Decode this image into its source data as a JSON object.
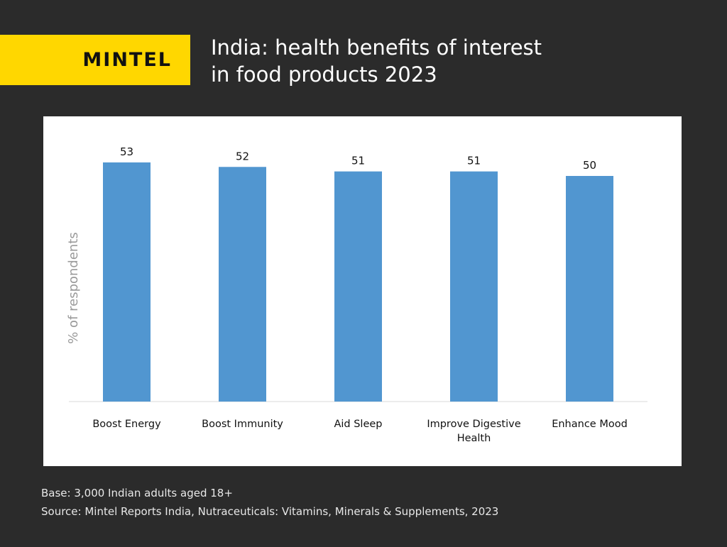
{
  "brand": {
    "logo_text": "MINTEL",
    "logo_color": "#ffd700"
  },
  "header": {
    "title_lines": [
      "India: health benefits of interest",
      "in food products 2023"
    ]
  },
  "footer": {
    "base": "Base: 3,000 Indian adults aged 18+",
    "source": "Source: Mintel Reports India, Nutraceuticals: Vitamins, Minerals & Supplements, 2023"
  },
  "chart_data": {
    "type": "bar",
    "title": "India: health benefits of interest in food products 2023",
    "xlabel": "",
    "ylabel": "% of respondents",
    "categories": [
      "Boost Energy",
      "Boost Immunity",
      "Aid Sleep",
      "Improve Digestive Health",
      "Enhance Mood"
    ],
    "category_label_lines": [
      [
        "Boost Energy"
      ],
      [
        "Boost Immunity"
      ],
      [
        "Aid Sleep"
      ],
      [
        "Improve Digestive",
        "Health"
      ],
      [
        "Enhance Mood"
      ]
    ],
    "values": [
      53,
      52,
      51,
      51,
      50
    ],
    "data_labels": [
      "53",
      "52",
      "51",
      "51",
      "50"
    ],
    "ylim": [
      0,
      60
    ],
    "grid": false,
    "legend": "none",
    "bar_color": "#5196d0"
  }
}
